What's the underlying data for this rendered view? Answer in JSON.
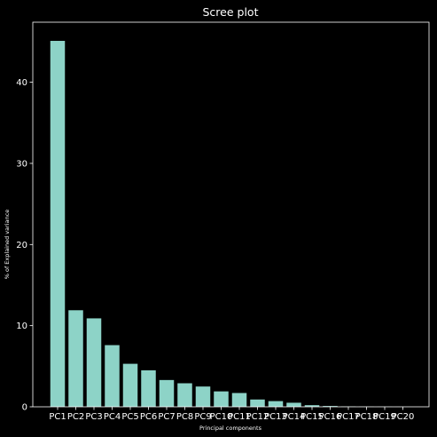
{
  "chart_data": {
    "type": "bar",
    "title": "Scree plot",
    "xlabel": "Principal components",
    "ylabel": "% of Explained variance",
    "categories": [
      "PC1",
      "PC2",
      "PC3",
      "PC4",
      "PC5",
      "PC6",
      "PC7",
      "PC8",
      "PC9",
      "PC10",
      "PC11",
      "PC12",
      "PC13",
      "PC14",
      "PC15",
      "PC16",
      "PC17",
      "PC18",
      "PC19",
      "PC20"
    ],
    "values": [
      45.1,
      11.9,
      10.9,
      7.6,
      5.3,
      4.5,
      3.3,
      2.9,
      2.5,
      1.9,
      1.7,
      0.9,
      0.7,
      0.5,
      0.2,
      0.1,
      0.04,
      0.02,
      0.01,
      0.005
    ],
    "ylim": [
      0,
      47.4
    ],
    "yticks": [
      0,
      10,
      20,
      30,
      40
    ],
    "bar_color": "#8dd3c7",
    "axis_color": "#ffffff",
    "background": "#000000"
  }
}
